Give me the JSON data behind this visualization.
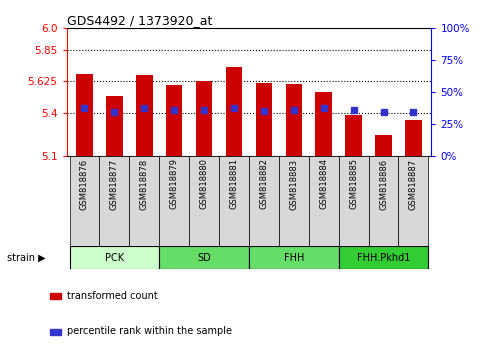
{
  "title": "GDS4492 / 1373920_at",
  "samples": [
    "GSM818876",
    "GSM818877",
    "GSM818878",
    "GSM818879",
    "GSM818880",
    "GSM818881",
    "GSM818882",
    "GSM818883",
    "GSM818884",
    "GSM818885",
    "GSM818886",
    "GSM818887"
  ],
  "bar_values": [
    5.68,
    5.52,
    5.67,
    5.6,
    5.625,
    5.73,
    5.615,
    5.605,
    5.55,
    5.385,
    5.25,
    5.35
  ],
  "percentile_values": [
    5.435,
    5.41,
    5.437,
    5.422,
    5.422,
    5.437,
    5.418,
    5.422,
    5.435,
    5.422,
    5.408,
    5.408
  ],
  "y_min": 5.1,
  "y_max": 6.0,
  "y_ticks_left": [
    5.1,
    5.4,
    5.625,
    5.85,
    6.0
  ],
  "y_ticks_right": [
    0,
    25,
    50,
    75,
    100
  ],
  "bar_color": "#cc0000",
  "dot_color": "#3333cc",
  "cell_color": "#d8d8d8",
  "groups": [
    {
      "label": "PCK",
      "start": 0,
      "end": 2,
      "color": "#ccffcc"
    },
    {
      "label": "SD",
      "start": 3,
      "end": 5,
      "color": "#66dd66"
    },
    {
      "label": "FHH",
      "start": 6,
      "end": 8,
      "color": "#66dd66"
    },
    {
      "label": "FHH.Pkhd1",
      "start": 9,
      "end": 11,
      "color": "#33cc33"
    }
  ],
  "strain_label": "strain",
  "legend": [
    {
      "color": "#cc0000",
      "label": "transformed count"
    },
    {
      "color": "#3333cc",
      "label": "percentile rank within the sample"
    }
  ]
}
